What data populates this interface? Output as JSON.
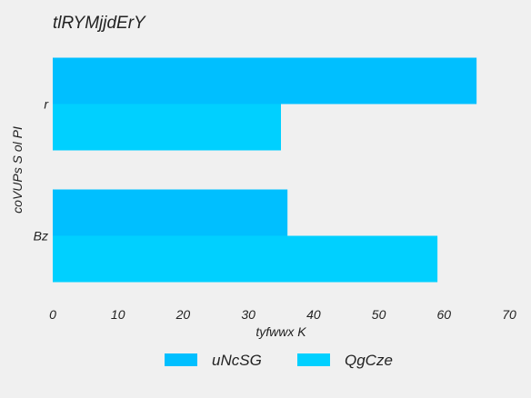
{
  "chart_data": {
    "type": "bar",
    "orientation": "horizontal",
    "title": "tlRYMjjdErY",
    "xlabel": "tyfwwx  K",
    "ylabel": "coVUPs S ol PI",
    "categories": [
      "r",
      "Bz"
    ],
    "series": [
      {
        "name": "uNcSG",
        "values": [
          65,
          36
        ],
        "color": "#00bfff"
      },
      {
        "name": "QgCze",
        "values": [
          35,
          59
        ],
        "color": "#00d0ff"
      }
    ],
    "xlim": [
      0,
      70
    ],
    "xticks": [
      "0",
      "10",
      "20",
      "30",
      "40",
      "50",
      "60",
      "70"
    ],
    "grid": false,
    "legend_position": "bottom-center"
  }
}
